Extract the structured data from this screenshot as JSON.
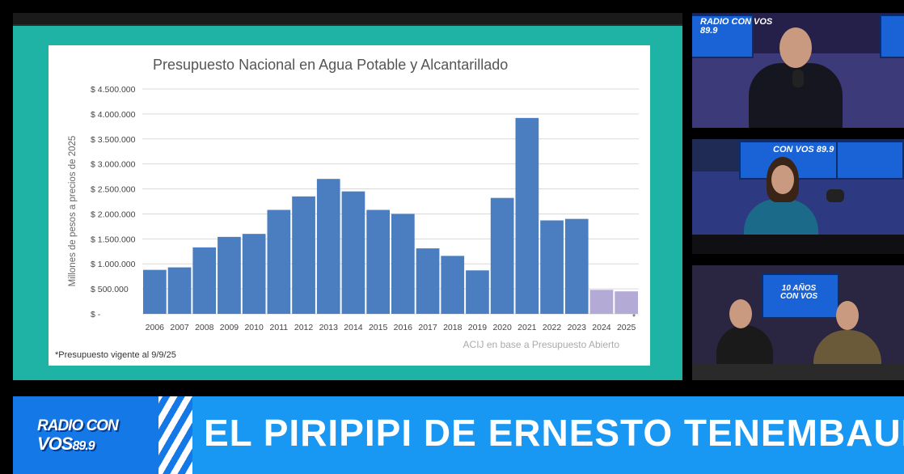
{
  "chart_data": {
    "type": "bar",
    "title": "Presupuesto Nacional en Agua Potable y Alcantarillado",
    "ylabel": "Millones de pesos a precios de 2025",
    "xlabel": "",
    "categories": [
      "2006",
      "2007",
      "2008",
      "2009",
      "2010",
      "2011",
      "2012",
      "2013",
      "2014",
      "2015",
      "2016",
      "2017",
      "2018",
      "2019",
      "2020",
      "2021",
      "2022",
      "2023",
      "2024",
      "2025"
    ],
    "values": [
      880000,
      930000,
      1330000,
      1540000,
      1600000,
      2080000,
      2350000,
      2700000,
      2450000,
      2080000,
      2000000,
      1310000,
      1160000,
      870000,
      2320000,
      3920000,
      1870000,
      1900000,
      480000,
      450000
    ],
    "highlight_from_index": 18,
    "ylim": [
      0,
      4500000
    ],
    "yticks": [
      0,
      500000,
      1000000,
      1500000,
      2000000,
      2500000,
      3000000,
      3500000,
      4000000,
      4500000
    ],
    "ytick_labels": [
      "$ -",
      "$ 500.000",
      "$ 1.000.000",
      "$ 1.500.000",
      "$ 2.000.000",
      "$ 2.500.000",
      "$ 3.000.000",
      "$ 3.500.000",
      "$ 4.000.000",
      "$ 4.500.000"
    ],
    "grid": true,
    "legend": "none",
    "asterisk_label": "*",
    "footnote": "*Presupuesto vigente al 9/9/25",
    "source": "ACIJ en base a Presupuesto Abierto",
    "colors": {
      "bar": "#4a7ec1",
      "bar_highlight": "#b4aad6",
      "grid": "#d9d9d9"
    }
  },
  "cameras": {
    "cam1_logo": "RADIO CON VOS",
    "cam1_logo_freq": "89.9",
    "cam2_logo": "CON VOS",
    "cam2_logo_freq": "89.9",
    "cam3_logo_top": "10 AÑOS",
    "cam3_logo_bottom": "CON VOS"
  },
  "banner": {
    "logo_line1": "RADIO CON",
    "logo_line2": "VOS",
    "logo_freq": "89.9",
    "title": "EL PIRIPIPI DE ERNESTO TENEMBAUM"
  },
  "colors": {
    "panel": "#1fb3a6",
    "banner": "#1898f2",
    "banner_logo": "#1479e6"
  }
}
